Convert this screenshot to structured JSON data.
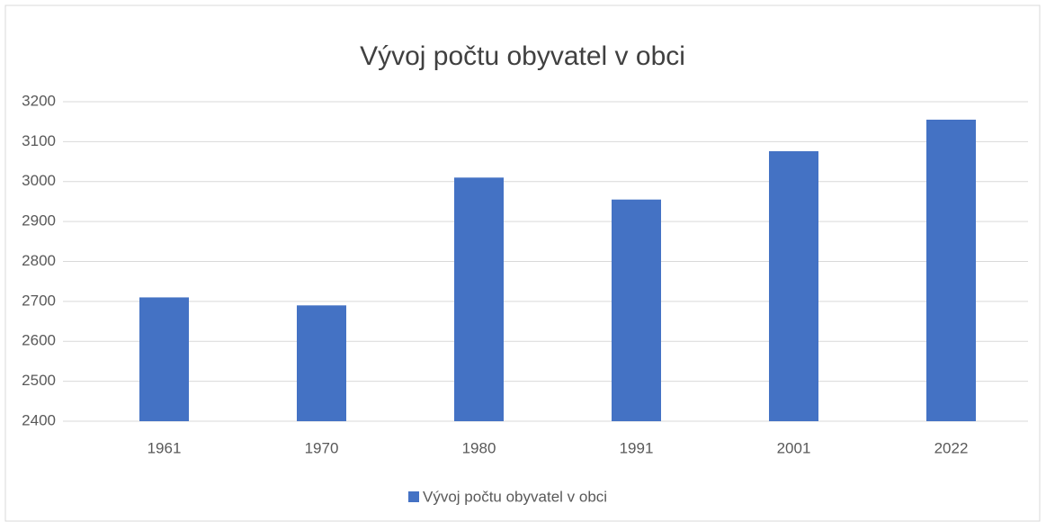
{
  "chart_data": {
    "type": "bar",
    "title": "Vývoj počtu obyvatel v obci",
    "categories": [
      "1961",
      "1970",
      "1980",
      "1991",
      "2001",
      "2022"
    ],
    "series": [
      {
        "name": "Vývoj počtu obyvatel v obci",
        "color": "#4472c4",
        "values": [
          2710,
          2690,
          3010,
          2955,
          3076,
          3155
        ]
      }
    ],
    "ylim": [
      2400,
      3200
    ],
    "yticks": [
      2400,
      2500,
      2600,
      2700,
      2800,
      2900,
      3000,
      3100,
      3200
    ],
    "grid": true,
    "legend": "bottom"
  }
}
